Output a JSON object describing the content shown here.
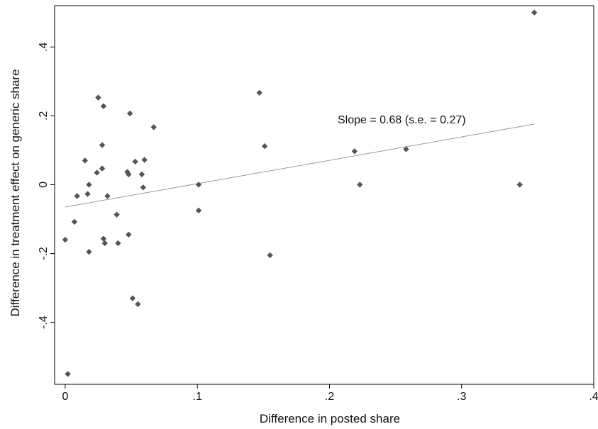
{
  "chart_data": {
    "type": "scatter",
    "xlabel": "Difference in posted share",
    "ylabel": "Difference in treatment effect on generic share",
    "xlim": [
      -0.008,
      0.4
    ],
    "ylim": [
      -0.58,
      0.52
    ],
    "x_ticks": [
      0,
      0.1,
      0.2,
      0.3,
      0.4
    ],
    "x_tick_labels": [
      "0",
      ".1",
      ".2",
      ".3",
      ".4"
    ],
    "y_ticks": [
      -0.4,
      -0.2,
      0,
      0.2,
      0.4
    ],
    "y_tick_labels": [
      "-.4",
      "-.2",
      "0",
      ".2",
      ".4"
    ],
    "grid": false,
    "legend": "none",
    "annotation": "Slope = 0.68 (s.e. = 0.27)",
    "fit_line": {
      "x": [
        0,
        0.355
      ],
      "y": [
        -0.065,
        0.176
      ]
    },
    "marker_color": "#555555",
    "line_color": "#9a9a9a",
    "series": [
      {
        "points": [
          [
            0.0,
            -0.16
          ],
          [
            0.002,
            -0.55
          ],
          [
            0.007,
            -0.108
          ],
          [
            0.009,
            -0.033
          ],
          [
            0.015,
            0.07
          ],
          [
            0.017,
            -0.027
          ],
          [
            0.018,
            0.0
          ],
          [
            0.018,
            -0.195
          ],
          [
            0.024,
            0.035
          ],
          [
            0.025,
            0.253
          ],
          [
            0.028,
            0.047
          ],
          [
            0.028,
            0.115
          ],
          [
            0.029,
            0.228
          ],
          [
            0.029,
            -0.157
          ],
          [
            0.03,
            -0.17
          ],
          [
            0.032,
            -0.033
          ],
          [
            0.039,
            -0.087
          ],
          [
            0.04,
            -0.17
          ],
          [
            0.047,
            0.037
          ],
          [
            0.048,
            0.03
          ],
          [
            0.048,
            -0.145
          ],
          [
            0.049,
            0.207
          ],
          [
            0.051,
            -0.33
          ],
          [
            0.053,
            0.067
          ],
          [
            0.055,
            -0.347
          ],
          [
            0.058,
            0.03
          ],
          [
            0.059,
            -0.008
          ],
          [
            0.06,
            0.072
          ],
          [
            0.067,
            0.167
          ],
          [
            0.101,
            0.0
          ],
          [
            0.101,
            -0.075
          ],
          [
            0.147,
            0.267
          ],
          [
            0.151,
            0.112
          ],
          [
            0.155,
            -0.205
          ],
          [
            0.219,
            0.097
          ],
          [
            0.223,
            0.0
          ],
          [
            0.258,
            0.103
          ],
          [
            0.344,
            0.0
          ],
          [
            0.355,
            0.5
          ]
        ]
      }
    ]
  }
}
